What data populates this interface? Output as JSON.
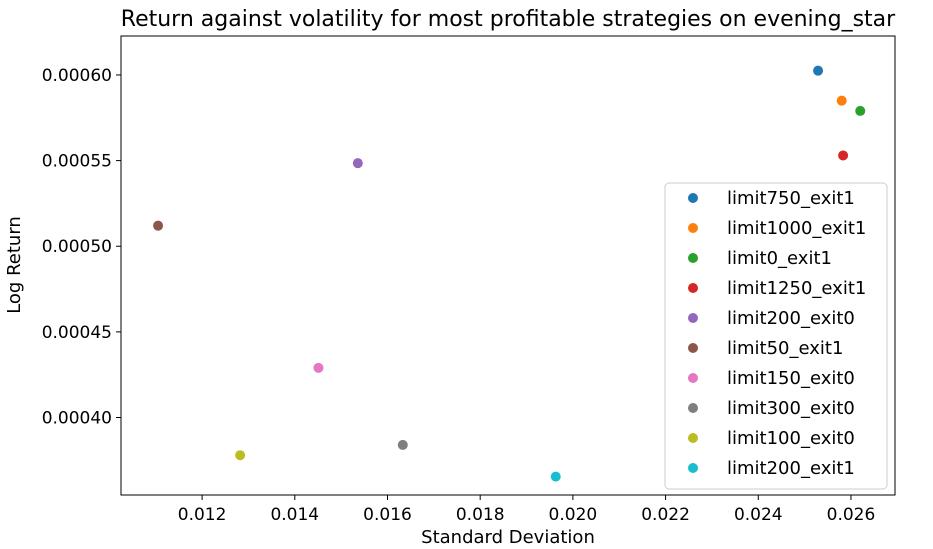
{
  "chart_data": {
    "type": "scatter",
    "title": "Return against volatility for most profitable strategies on evening_star",
    "xlabel": "Standard Deviation",
    "ylabel": "Log Return",
    "xlim": [
      0.01025,
      0.02695
    ],
    "ylim": [
      0.00035476,
      0.00062275
    ],
    "xticks": [
      0.012,
      0.014,
      0.016,
      0.018,
      0.02,
      0.022,
      0.024,
      0.026
    ],
    "xtick_labels": [
      "0.012",
      "0.014",
      "0.016",
      "0.018",
      "0.020",
      "0.022",
      "0.024",
      "0.026"
    ],
    "yticks": [
      0.0004,
      0.00045,
      0.0005,
      0.00055,
      0.0006
    ],
    "ytick_labels": [
      "0.00040",
      "0.00045",
      "0.00050",
      "0.00055",
      "0.00060"
    ],
    "grid": false,
    "legend_position": "right",
    "series": [
      {
        "name": "limit750_exit1",
        "color": "#1f77b4",
        "x": 0.02529,
        "y": 0.0006025
      },
      {
        "name": "limit1000_exit1",
        "color": "#ff7f0e",
        "x": 0.0258,
        "y": 0.000585
      },
      {
        "name": "limit0_exit1",
        "color": "#2ca02c",
        "x": 0.0262,
        "y": 0.000579
      },
      {
        "name": "limit1250_exit1",
        "color": "#d62728",
        "x": 0.02583,
        "y": 0.000553
      },
      {
        "name": "limit200_exit0",
        "color": "#9467bd",
        "x": 0.01536,
        "y": 0.0005485
      },
      {
        "name": "limit50_exit1",
        "color": "#8c564b",
        "x": 0.01105,
        "y": 0.000512
      },
      {
        "name": "limit150_exit0",
        "color": "#e377c2",
        "x": 0.01451,
        "y": 0.000429
      },
      {
        "name": "limit300_exit0",
        "color": "#7f7f7f",
        "x": 0.01633,
        "y": 0.000384
      },
      {
        "name": "limit100_exit0",
        "color": "#bcbd22",
        "x": 0.01282,
        "y": 0.000378
      },
      {
        "name": "limit200_exit1",
        "color": "#17becf",
        "x": 0.01963,
        "y": 0.0003655
      }
    ]
  }
}
